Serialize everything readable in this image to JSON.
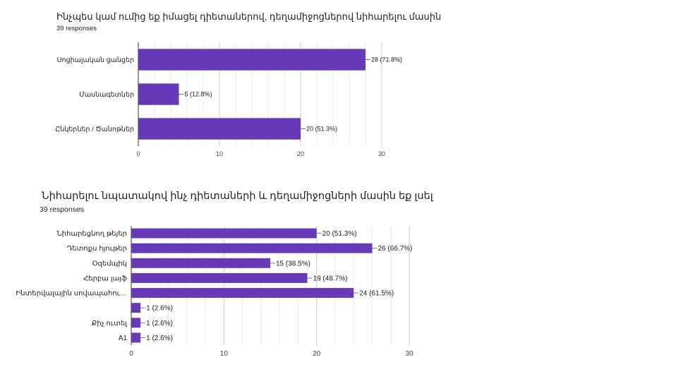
{
  "chart_data": [
    {
      "type": "bar",
      "orientation": "horizontal",
      "title": "Ինչպես կամ ումից եք իմացել դիետաներով, դեղամիջոցներով  նիհարելու մասին",
      "subtitle": "39 responses",
      "categories": [
        "Սոցիալական ցանցեր",
        "Մասնագետներ",
        "Ընկերներ / Ծանոթներ"
      ],
      "values": [
        28,
        5,
        20
      ],
      "value_labels": [
        "28 (71.8%)",
        "5 (12.8%)",
        "20 (51.3%)"
      ],
      "xlim": [
        0,
        30
      ],
      "xticks": [
        0,
        10,
        20,
        30
      ],
      "grid": true,
      "color": "#673ab7"
    },
    {
      "type": "bar",
      "orientation": "horizontal",
      "title": "Նիհարելու նպատակով ինչ դիետաների և դեղամիջոցների մասին եք լսել",
      "subtitle": "39 responses",
      "categories": [
        "Նիհարեցնող թեյեր",
        "Դետոքս հյութեր",
        "Օզեմպիկ",
        "Հերբա լայֆ",
        "Ինտերվալային սովապահու…",
        "",
        "Քիչ ուտել",
        "A1"
      ],
      "values": [
        20,
        26,
        15,
        19,
        24,
        1,
        1,
        1
      ],
      "value_labels": [
        "20 (51.3%)",
        "26 (66.7%)",
        "15 (38.5%)",
        "19 (48.7%)",
        "24 (61.5%)",
        "1 (2.6%)",
        "1 (2.6%)",
        "1 (2.6%)"
      ],
      "xlim": [
        0,
        30
      ],
      "xticks": [
        0,
        10,
        20,
        30
      ],
      "grid": true,
      "color": "#673ab7"
    }
  ]
}
